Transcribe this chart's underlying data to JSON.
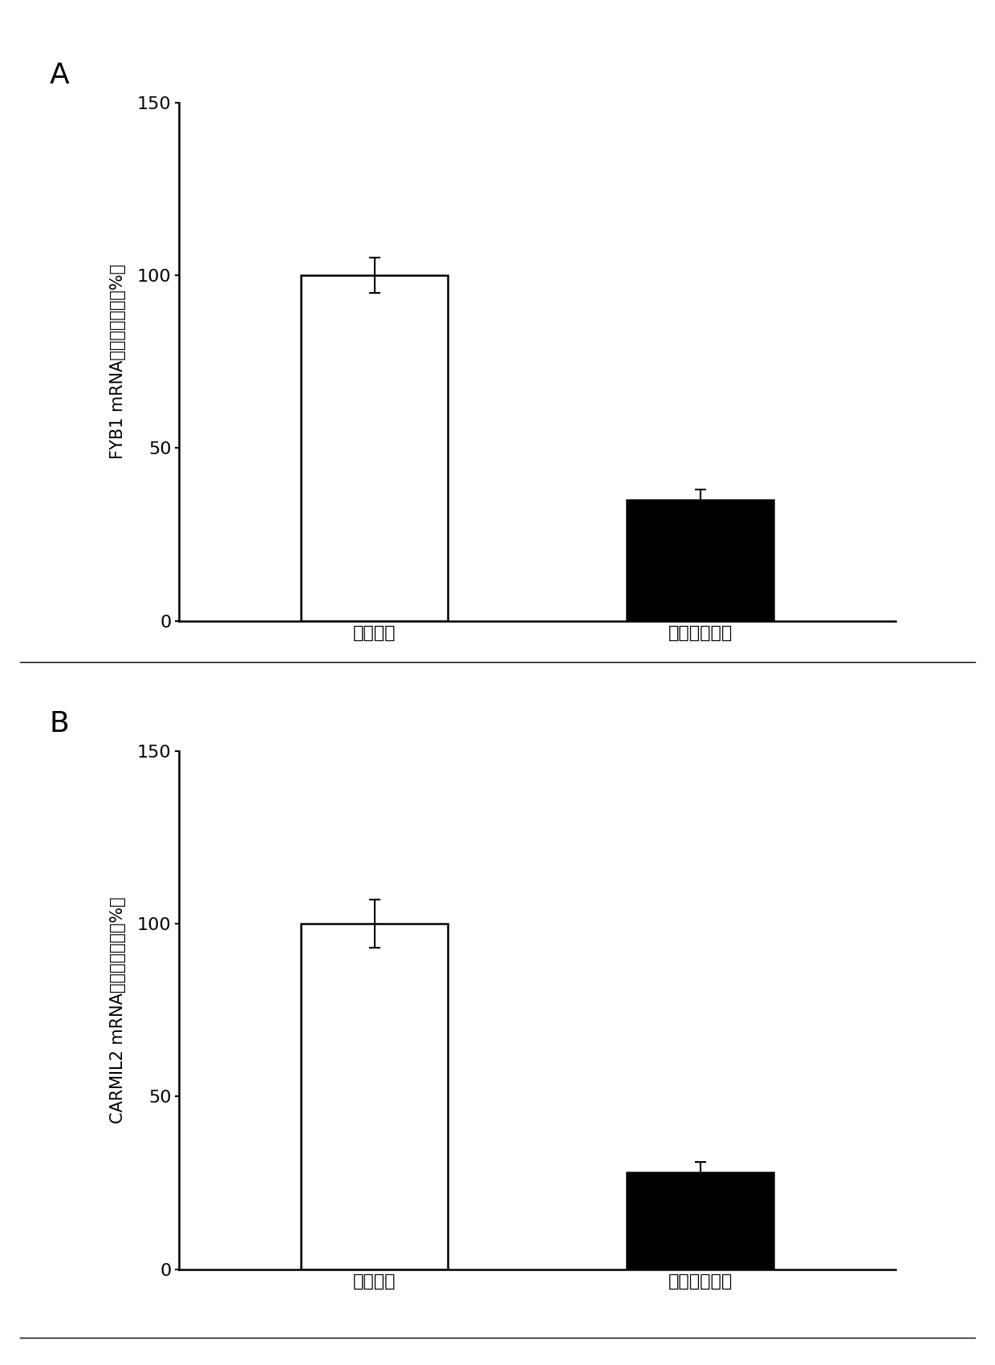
{
  "panel_A": {
    "label": "A",
    "categories": [
      "癌旁组织",
      "甲状腺癌组织"
    ],
    "values": [
      100,
      35
    ],
    "errors": [
      5,
      3
    ],
    "bar_colors": [
      "#ffffff",
      "#000000"
    ],
    "bar_edgecolors": [
      "#000000",
      "#000000"
    ],
    "ylabel": "FYB1 mRNA的相对表达量（%）",
    "ylim": [
      0,
      150
    ],
    "yticks": [
      0,
      50,
      100,
      150
    ]
  },
  "panel_B": {
    "label": "B",
    "categories": [
      "癌旁组织",
      "甲状腺癌组织"
    ],
    "values": [
      100,
      28
    ],
    "errors": [
      7,
      3
    ],
    "bar_colors": [
      "#ffffff",
      "#000000"
    ],
    "bar_edgecolors": [
      "#000000",
      "#000000"
    ],
    "ylabel": "CARMIL2 mRNA的相对表达量（%）",
    "ylim": [
      0,
      150
    ],
    "yticks": [
      0,
      50,
      100,
      150
    ]
  },
  "bar_width": 0.45,
  "figsize": [
    12.4,
    17.01
  ],
  "dpi": 100,
  "background_color": "#ffffff",
  "tick_fontsize": 16,
  "ylabel_fontsize": 15,
  "panel_label_fontsize": 26,
  "errorbar_capsize": 5,
  "errorbar_linewidth": 1.5,
  "errorbar_color": "#000000"
}
